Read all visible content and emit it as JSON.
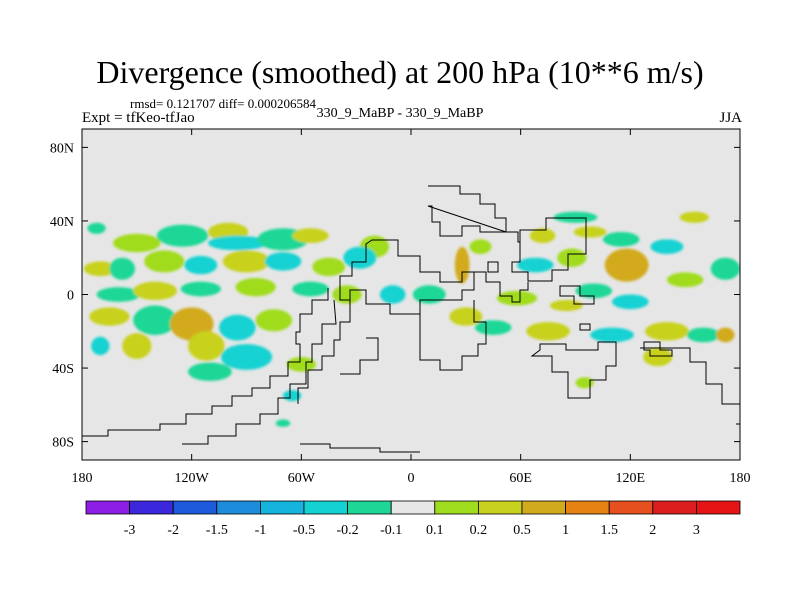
{
  "title": "Divergence (smoothed) at 200 hPa (10**6 m/s)",
  "stats": "rmsd= 0.121707 diff= 0.000206584",
  "expt": "Expt = tfKeo-tfJao",
  "center_label": "330_9_MaBP - 330_9_MaBP",
  "season": "JJA",
  "chart_data": {
    "type": "heatmap",
    "title": "Divergence (smoothed) at 200 hPa (10**6 m/s)",
    "x_ticks": [
      "180",
      "120W",
      "60W",
      "0",
      "60E",
      "120E",
      "180"
    ],
    "x_tick_values": [
      -180,
      -120,
      -60,
      0,
      60,
      120,
      180
    ],
    "y_ticks": [
      "80N",
      "40N",
      "0",
      "40S",
      "80S"
    ],
    "y_tick_values": [
      80,
      40,
      0,
      -40,
      -80
    ],
    "xlim": [
      -180,
      180
    ],
    "ylim": [
      -90,
      90
    ],
    "colorbar": {
      "labels": [
        "-3",
        "-2",
        "-1.5",
        "-1",
        "-0.5",
        "-0.2",
        "-0.1",
        "0.1",
        "0.2",
        "0.5",
        "1",
        "1.5",
        "2",
        "3"
      ],
      "colors": [
        "#8c1ee6",
        "#3c28dc",
        "#1e5adc",
        "#1e8cdc",
        "#14b4dc",
        "#14d2d2",
        "#1ed796",
        "#e6e6e6",
        "#a0dc1e",
        "#c8d21e",
        "#d2aa1e",
        "#e68214",
        "#e6501e",
        "#dc1e1e",
        "#e61414"
      ]
    },
    "background_color": "#e6e6e6",
    "blobs": [
      {
        "lon": -172,
        "lat": 36,
        "rx": 5,
        "ry": 3,
        "c": 6
      },
      {
        "lon": -150,
        "lat": 28,
        "rx": 13,
        "ry": 5,
        "c": 8
      },
      {
        "lon": -125,
        "lat": 32,
        "rx": 14,
        "ry": 6,
        "c": 6
      },
      {
        "lon": -100,
        "lat": 34,
        "rx": 11,
        "ry": 5,
        "c": 9
      },
      {
        "lon": -95,
        "lat": 28,
        "rx": 16,
        "ry": 4,
        "c": 5
      },
      {
        "lon": -70,
        "lat": 30,
        "rx": 14,
        "ry": 6,
        "c": 6
      },
      {
        "lon": -55,
        "lat": 32,
        "rx": 10,
        "ry": 4,
        "c": 9
      },
      {
        "lon": -20,
        "lat": 26,
        "rx": 8,
        "ry": 6,
        "c": 8
      },
      {
        "lon": -170,
        "lat": 14,
        "rx": 9,
        "ry": 4,
        "c": 9
      },
      {
        "lon": -158,
        "lat": 14,
        "rx": 7,
        "ry": 6,
        "c": 6
      },
      {
        "lon": -135,
        "lat": 18,
        "rx": 11,
        "ry": 6,
        "c": 8
      },
      {
        "lon": -115,
        "lat": 16,
        "rx": 9,
        "ry": 5,
        "c": 5
      },
      {
        "lon": -90,
        "lat": 18,
        "rx": 13,
        "ry": 6,
        "c": 9
      },
      {
        "lon": -70,
        "lat": 18,
        "rx": 10,
        "ry": 5,
        "c": 5
      },
      {
        "lon": -45,
        "lat": 15,
        "rx": 9,
        "ry": 5,
        "c": 8
      },
      {
        "lon": -28,
        "lat": 20,
        "rx": 9,
        "ry": 6,
        "c": 5
      },
      {
        "lon": -160,
        "lat": 0,
        "rx": 12,
        "ry": 4,
        "c": 6
      },
      {
        "lon": -140,
        "lat": 2,
        "rx": 12,
        "ry": 5,
        "c": 9
      },
      {
        "lon": -115,
        "lat": 3,
        "rx": 11,
        "ry": 4,
        "c": 6
      },
      {
        "lon": -85,
        "lat": 4,
        "rx": 11,
        "ry": 5,
        "c": 8
      },
      {
        "lon": -55,
        "lat": 3,
        "rx": 10,
        "ry": 4,
        "c": 6
      },
      {
        "lon": -35,
        "lat": 0,
        "rx": 8,
        "ry": 5,
        "c": 8
      },
      {
        "lon": -10,
        "lat": 0,
        "rx": 7,
        "ry": 5,
        "c": 5
      },
      {
        "lon": -165,
        "lat": -12,
        "rx": 11,
        "ry": 5,
        "c": 9
      },
      {
        "lon": -140,
        "lat": -14,
        "rx": 12,
        "ry": 8,
        "c": 6
      },
      {
        "lon": -120,
        "lat": -16,
        "rx": 12,
        "ry": 9,
        "c": 10
      },
      {
        "lon": -95,
        "lat": -18,
        "rx": 10,
        "ry": 7,
        "c": 5
      },
      {
        "lon": -75,
        "lat": -14,
        "rx": 10,
        "ry": 6,
        "c": 8
      },
      {
        "lon": -170,
        "lat": -28,
        "rx": 5,
        "ry": 5,
        "c": 5
      },
      {
        "lon": -150,
        "lat": -28,
        "rx": 8,
        "ry": 7,
        "c": 9
      },
      {
        "lon": -112,
        "lat": -28,
        "rx": 10,
        "ry": 8,
        "c": 9
      },
      {
        "lon": -90,
        "lat": -34,
        "rx": 14,
        "ry": 7,
        "c": 5
      },
      {
        "lon": -60,
        "lat": -38,
        "rx": 8,
        "ry": 4,
        "c": 8
      },
      {
        "lon": -110,
        "lat": -42,
        "rx": 12,
        "ry": 5,
        "c": 6
      },
      {
        "lon": -65,
        "lat": -55,
        "rx": 5,
        "ry": 3,
        "c": 5
      },
      {
        "lon": -70,
        "lat": -70,
        "rx": 4,
        "ry": 2,
        "c": 6
      },
      {
        "lon": 10,
        "lat": 0,
        "rx": 9,
        "ry": 5,
        "c": 6
      },
      {
        "lon": 28,
        "lat": 16,
        "rx": 4,
        "ry": 10,
        "c": 10
      },
      {
        "lon": 38,
        "lat": 26,
        "rx": 6,
        "ry": 4,
        "c": 8
      },
      {
        "lon": 30,
        "lat": -12,
        "rx": 9,
        "ry": 5,
        "c": 9
      },
      {
        "lon": 45,
        "lat": -18,
        "rx": 10,
        "ry": 4,
        "c": 6
      },
      {
        "lon": 58,
        "lat": -2,
        "rx": 11,
        "ry": 4,
        "c": 8
      },
      {
        "lon": 68,
        "lat": 16,
        "rx": 10,
        "ry": 4,
        "c": 5
      },
      {
        "lon": 72,
        "lat": 32,
        "rx": 7,
        "ry": 4,
        "c": 9
      },
      {
        "lon": 88,
        "lat": 20,
        "rx": 8,
        "ry": 5,
        "c": 8
      },
      {
        "lon": 90,
        "lat": 42,
        "rx": 12,
        "ry": 3,
        "c": 6
      },
      {
        "lon": 98,
        "lat": 34,
        "rx": 9,
        "ry": 3,
        "c": 9
      },
      {
        "lon": 115,
        "lat": 30,
        "rx": 10,
        "ry": 4,
        "c": 6
      },
      {
        "lon": 118,
        "lat": 16,
        "rx": 12,
        "ry": 9,
        "c": 10
      },
      {
        "lon": 140,
        "lat": 26,
        "rx": 9,
        "ry": 4,
        "c": 5
      },
      {
        "lon": 155,
        "lat": 42,
        "rx": 8,
        "ry": 3,
        "c": 9
      },
      {
        "lon": 150,
        "lat": 8,
        "rx": 10,
        "ry": 4,
        "c": 8
      },
      {
        "lon": 172,
        "lat": 14,
        "rx": 8,
        "ry": 6,
        "c": 6
      },
      {
        "lon": 100,
        "lat": 2,
        "rx": 10,
        "ry": 4,
        "c": 6
      },
      {
        "lon": 85,
        "lat": -6,
        "rx": 9,
        "ry": 3,
        "c": 9
      },
      {
        "lon": 120,
        "lat": -4,
        "rx": 10,
        "ry": 4,
        "c": 5
      },
      {
        "lon": 75,
        "lat": -20,
        "rx": 12,
        "ry": 5,
        "c": 9
      },
      {
        "lon": 110,
        "lat": -22,
        "rx": 12,
        "ry": 4,
        "c": 5
      },
      {
        "lon": 140,
        "lat": -20,
        "rx": 12,
        "ry": 5,
        "c": 9
      },
      {
        "lon": 160,
        "lat": -22,
        "rx": 9,
        "ry": 4,
        "c": 6
      },
      {
        "lon": 172,
        "lat": -22,
        "rx": 5,
        "ry": 4,
        "c": 10
      },
      {
        "lon": 135,
        "lat": -34,
        "rx": 8,
        "ry": 5,
        "c": 9
      },
      {
        "lon": 95,
        "lat": -48,
        "rx": 5,
        "ry": 3,
        "c": 8
      }
    ]
  }
}
